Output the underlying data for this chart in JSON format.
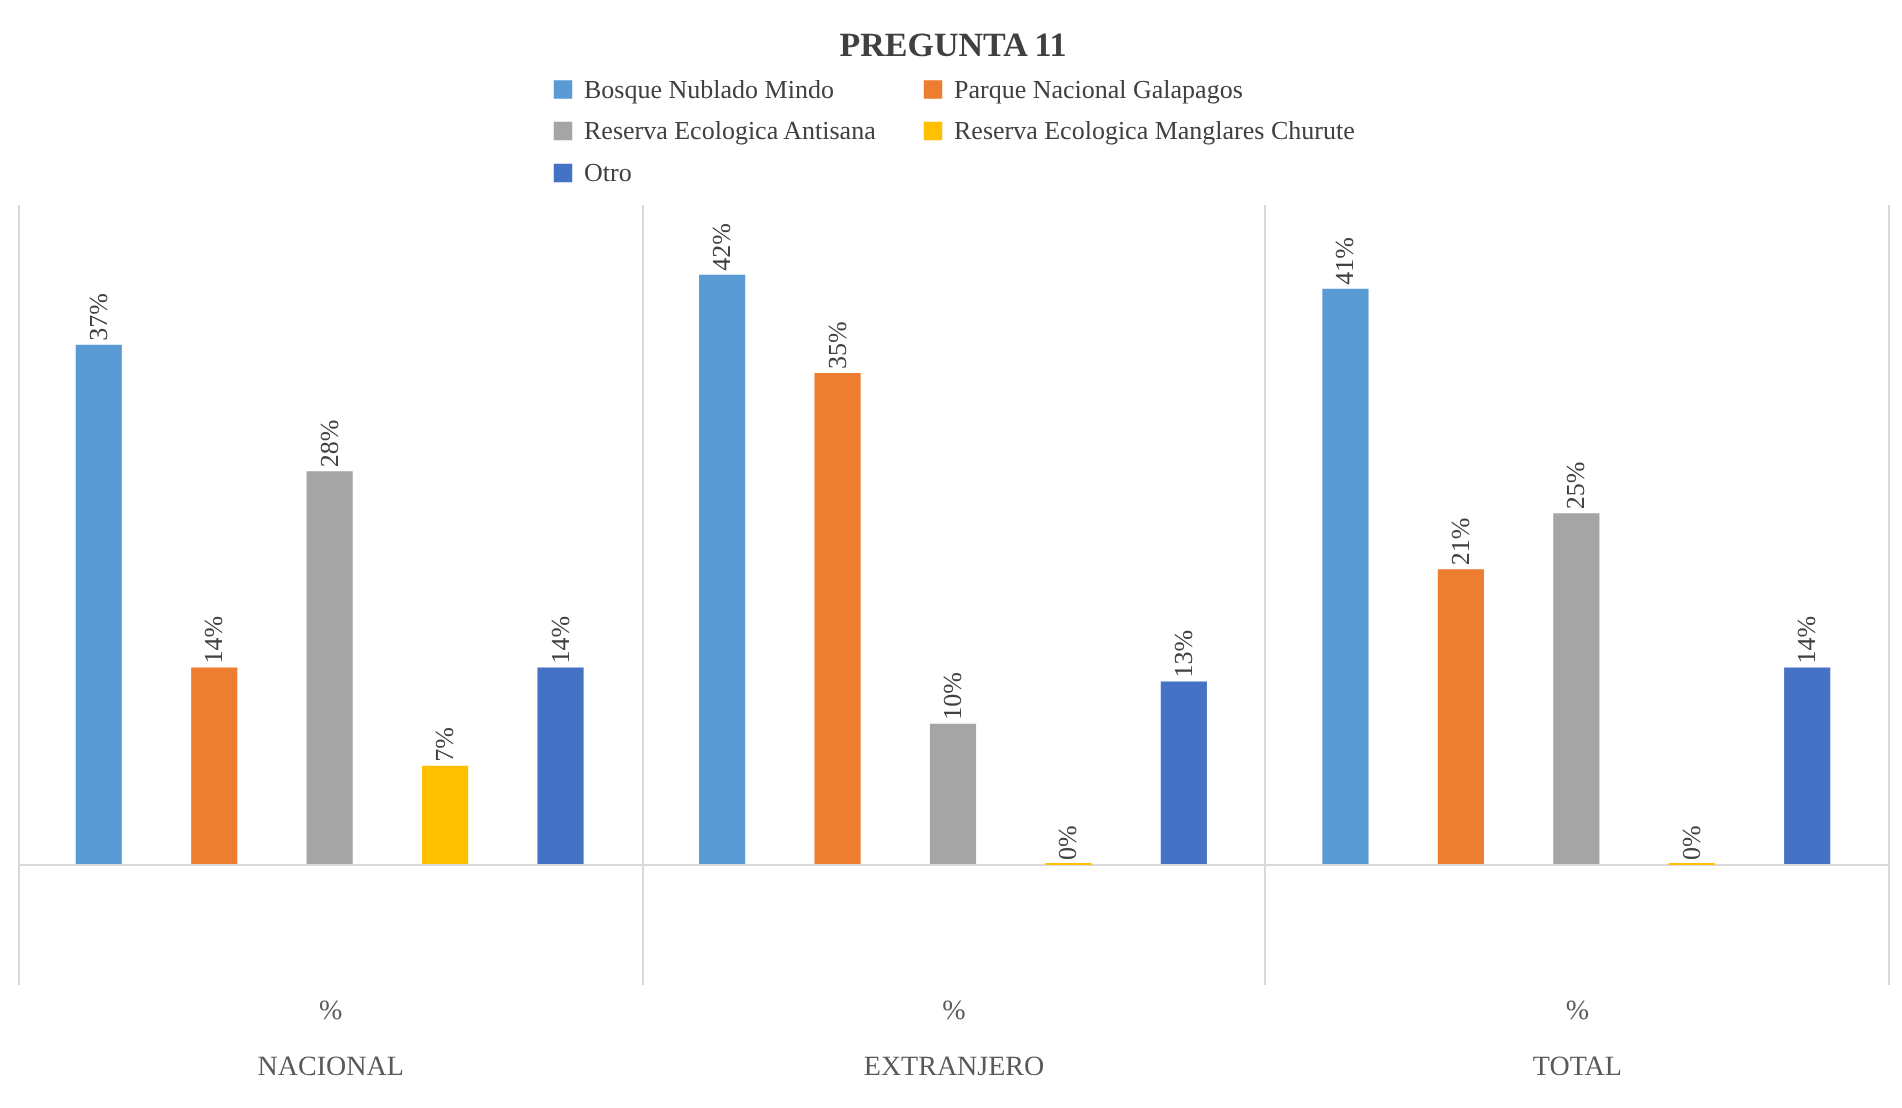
{
  "chart_data": {
    "type": "bar",
    "title": "PREGUNTA 11",
    "categories": [
      "NACIONAL",
      "EXTRANJERO",
      "TOTAL"
    ],
    "series": [
      {
        "name": "Bosque Nublado Mindo",
        "color": "#5b9bd5",
        "values": [
          37,
          42,
          41
        ],
        "value_labels": [
          "37%",
          "42%",
          "41%"
        ]
      },
      {
        "name": "Parque Nacional Galapagos",
        "color": "#ed7d31",
        "values": [
          14,
          35,
          21
        ],
        "value_labels": [
          "14%",
          "35%",
          "21%"
        ]
      },
      {
        "name": "Reserva Ecologica Antisana",
        "color": "#a5a5a5",
        "values": [
          28,
          10,
          25
        ],
        "value_labels": [
          "28%",
          "10%",
          "25%"
        ]
      },
      {
        "name": "Reserva Ecologica Manglares Churute",
        "color": "#ffc000",
        "values": [
          7,
          0,
          0
        ],
        "value_labels": [
          "7%",
          "0%",
          "0%"
        ]
      },
      {
        "name": "Otro",
        "color": "#4472c4",
        "values": [
          14,
          13,
          14
        ],
        "value_labels": [
          "14%",
          "13%",
          "14%"
        ]
      }
    ],
    "annotations": [
      "%",
      "%",
      "%"
    ],
    "legend": "top",
    "grid": "x"
  }
}
